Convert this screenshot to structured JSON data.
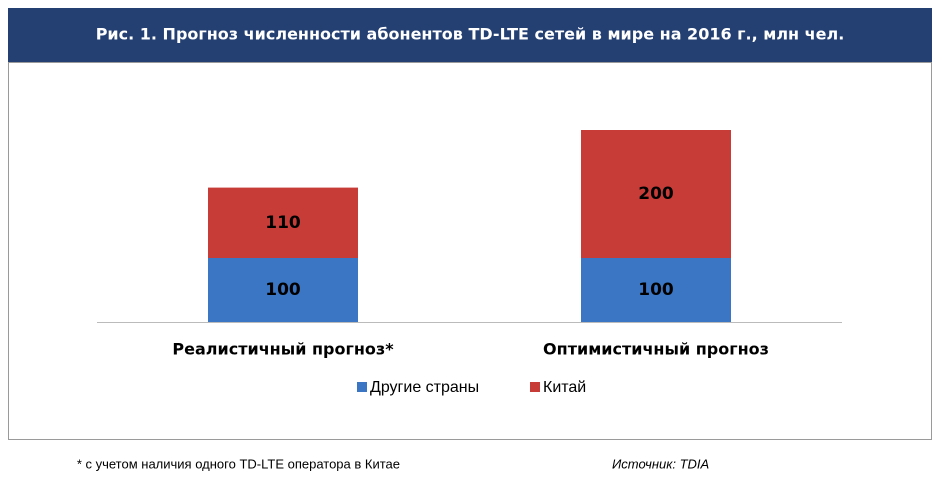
{
  "chart_data": {
    "type": "stacked-bar",
    "title": "Рис. 1. Прогноз численности абонентов TD-LTE сетей в мире на 2016 г., млн чел.",
    "categories": [
      "Реалистичный прогноз*",
      "Оптимистичный прогноз"
    ],
    "series": [
      {
        "name": "Другие страны",
        "color": "#3a76c4",
        "values": [
          100,
          100
        ]
      },
      {
        "name": "Китай",
        "color": "#c83c38",
        "values": [
          110,
          200
        ]
      }
    ],
    "note": "* с учетом наличия одного TD-LTE оператора в Китае",
    "source": "Источник: TDIA"
  }
}
